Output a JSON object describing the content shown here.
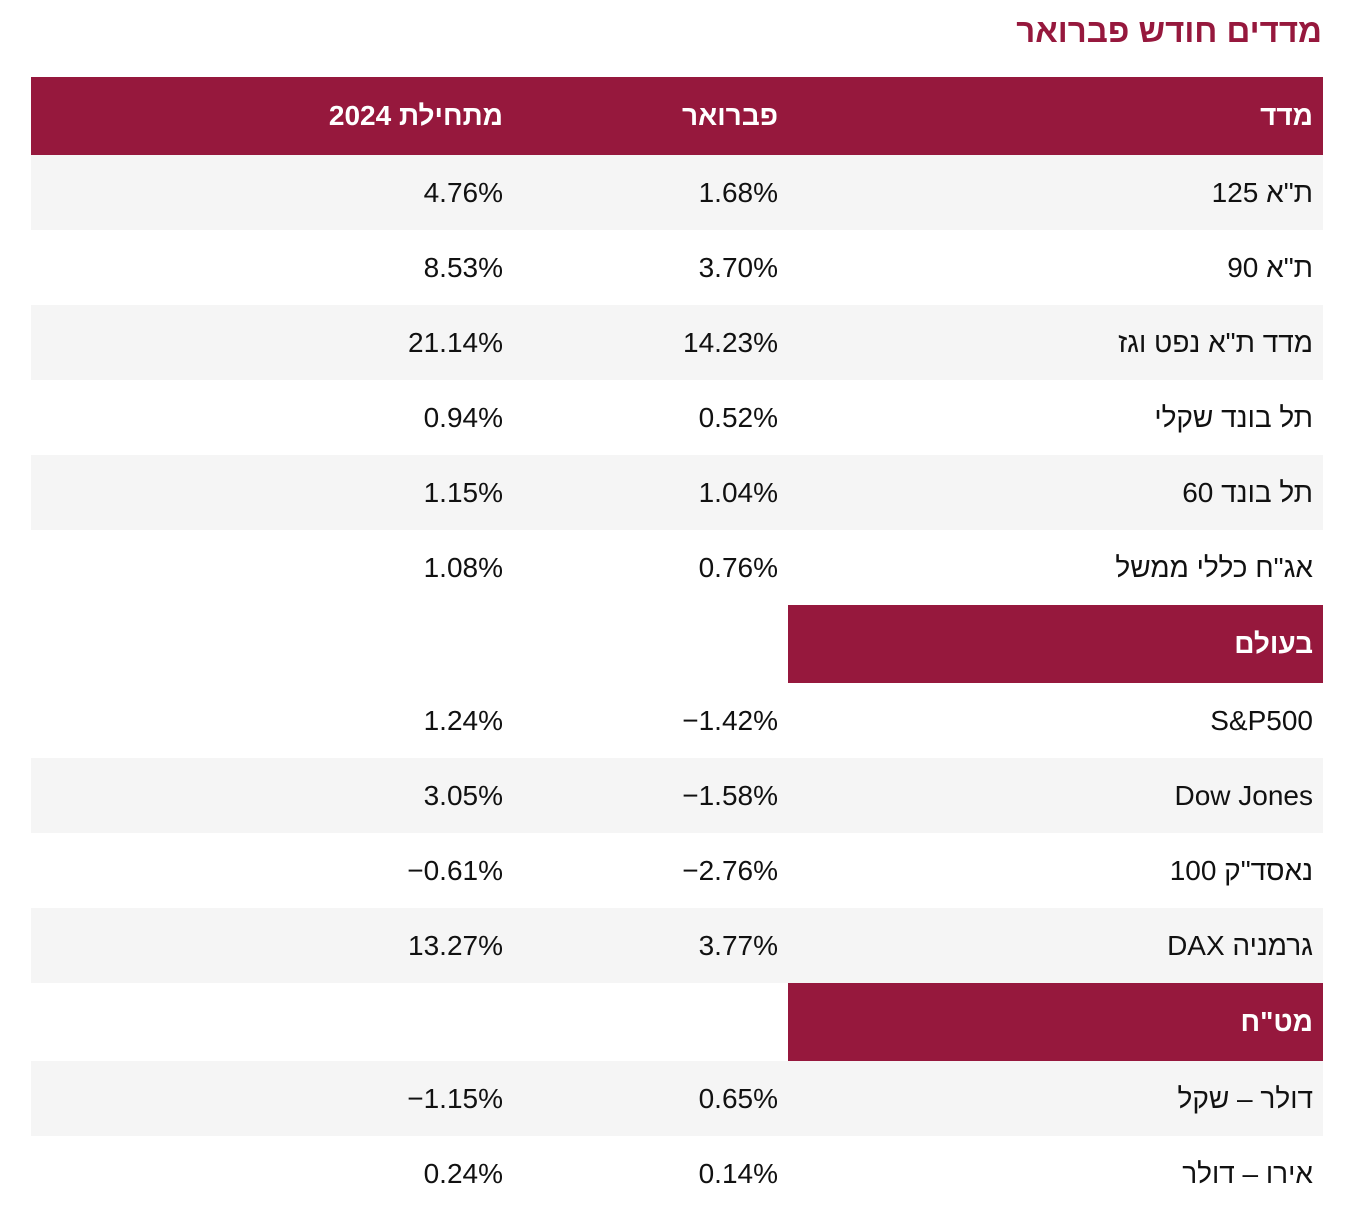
{
  "title": "מדדים חודש פברואר",
  "colors": {
    "accent": "#96183d",
    "row_alt": "#f5f5f5"
  },
  "header": {
    "name": "מדד",
    "feb": "פברואר",
    "ytd": "מתחילת 2024"
  },
  "local": [
    {
      "name": "ת\"א 125",
      "feb": "1.68%",
      "ytd": "4.76%"
    },
    {
      "name": "ת\"א 90",
      "feb": "3.70%",
      "ytd": "8.53%"
    },
    {
      "name": "מדד ת\"א נפט וגז",
      "feb": "14.23%",
      "ytd": "21.14%"
    },
    {
      "name": "תל בונד שקלי",
      "feb": "0.52%",
      "ytd": "0.94%"
    },
    {
      "name": "תל בונד 60",
      "feb": "1.04%",
      "ytd": "1.15%"
    },
    {
      "name": "אג\"ח כללי ממשל",
      "feb": "0.76%",
      "ytd": "1.08%"
    }
  ],
  "world_section": "בעולם",
  "world": [
    {
      "name": "S&P500",
      "feb": "−1.42%",
      "ytd": "1.24%"
    },
    {
      "name": "Dow Jones",
      "feb": "−1.58%",
      "ytd": "3.05%"
    },
    {
      "name": "נאסד\"ק 100",
      "feb": "−2.76%",
      "ytd": "−0.61%"
    },
    {
      "name": "גרמניה DAX",
      "feb": "3.77%",
      "ytd": "13.27%"
    }
  ],
  "fx_section": "מט\"ח",
  "fx": [
    {
      "name": "דולר – שקל",
      "feb": "0.65%",
      "ytd": "−1.15%"
    },
    {
      "name": "אירו – דולר",
      "feb": "0.14%",
      "ytd": "0.24%"
    }
  ]
}
